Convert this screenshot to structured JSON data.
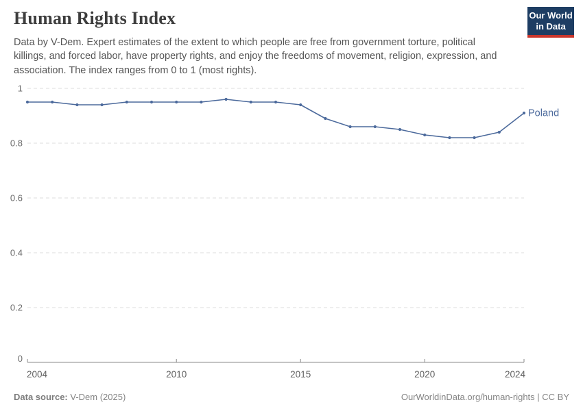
{
  "header": {
    "title": "Human Rights Index",
    "subtitle": "Data by V-Dem. Expert estimates of the extent to which people are free from government torture, political killings, and forced labor, have property rights, and enjoy the freedoms of movement, religion, expression, and association. The index ranges from 0 to 1 (most rights).",
    "logo": {
      "line1": "Our World",
      "line2": "in Data",
      "bg_color": "#1d3d63",
      "accent_color": "#c9362c"
    }
  },
  "chart_data": {
    "type": "line",
    "title": "Human Rights Index",
    "x": [
      2004,
      2005,
      2006,
      2007,
      2008,
      2009,
      2010,
      2011,
      2012,
      2013,
      2014,
      2015,
      2016,
      2017,
      2018,
      2019,
      2020,
      2021,
      2022,
      2023,
      2024
    ],
    "series": [
      {
        "name": "Poland",
        "values": [
          0.95,
          0.95,
          0.94,
          0.94,
          0.95,
          0.95,
          0.95,
          0.95,
          0.96,
          0.95,
          0.95,
          0.94,
          0.89,
          0.86,
          0.86,
          0.85,
          0.83,
          0.82,
          0.82,
          0.84,
          0.91
        ],
        "color": "#4C6A9C"
      }
    ],
    "xlim": [
      2004,
      2024
    ],
    "ylim": [
      0,
      1
    ],
    "xticks": [
      2004,
      2010,
      2015,
      2020,
      2024
    ],
    "yticks": [
      0,
      0.2,
      0.4,
      0.6,
      0.8,
      1
    ],
    "ytick_labels": [
      "0",
      "0.2",
      "0.4",
      "0.6",
      "0.8",
      "1"
    ],
    "grid": "horizontal-dashed",
    "legend": "end-of-line label",
    "grid_color": "#dddddd",
    "axis_color": "#8a8a8a",
    "ytick_label_color": "#6b6b6b",
    "xtick_label_color": "#5f5f5f"
  },
  "footer": {
    "source_label": "Data source:",
    "source_value": " V-Dem (2025)",
    "attribution": "OurWorldinData.org/human-rights | CC BY"
  }
}
